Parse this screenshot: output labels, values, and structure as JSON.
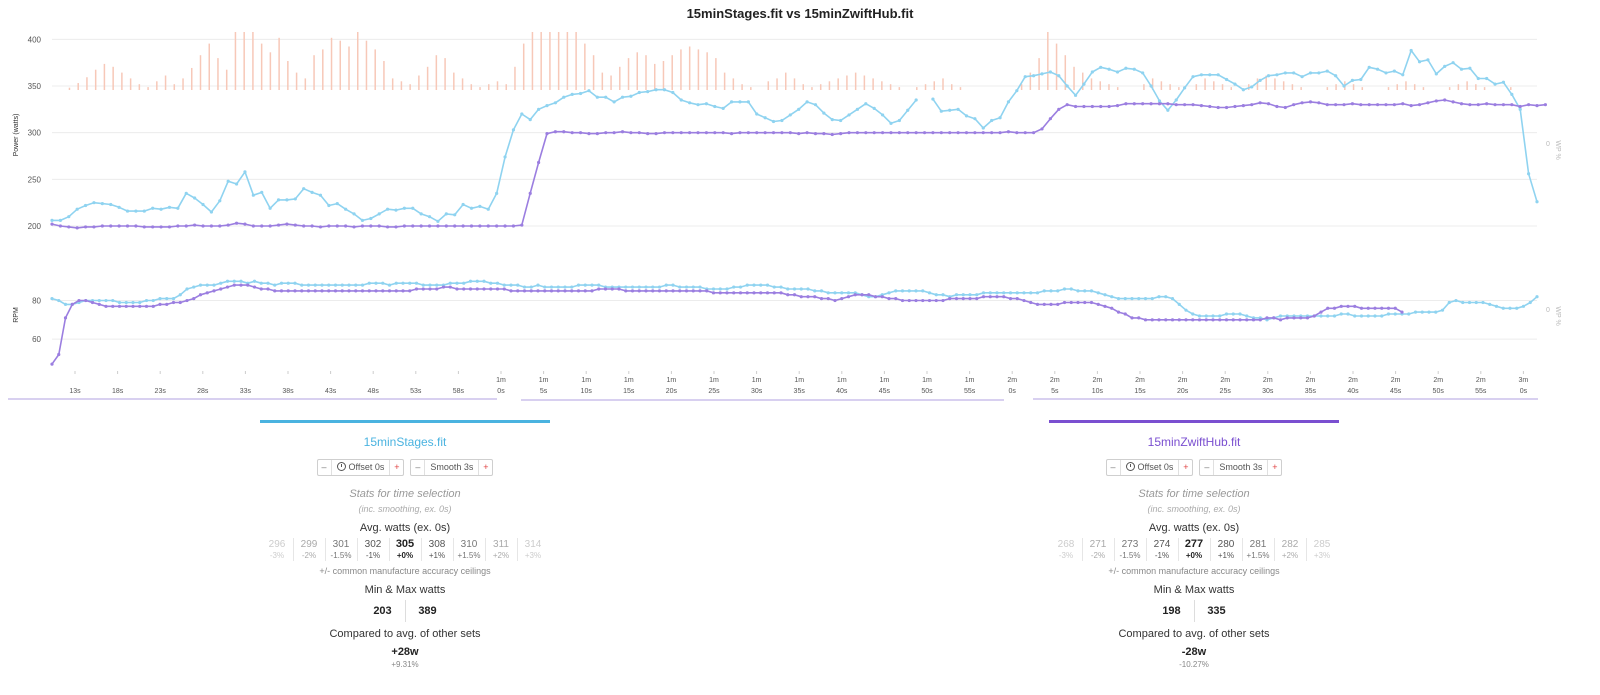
{
  "title": "15minStages.fit vs 15minZwiftHub.fit",
  "colors": {
    "stages": "#8fd3f0",
    "zwift": "#9b7ee0",
    "stages_bar": "#4ab3e0",
    "zwift_bar": "#7a4fd0",
    "wp_bars": "#f7c8b8",
    "grid": "#ececec"
  },
  "chart_data": [
    {
      "type": "line",
      "ylabel": "Power (watts)",
      "y2label": "WP %",
      "y2_tick": "0",
      "ylim": [
        185,
        410
      ],
      "yticks": [
        200,
        250,
        300,
        350,
        400
      ],
      "x_start_s": 9,
      "x_step_s": 1,
      "grid": true,
      "series": [
        {
          "name": "15minStages.fit",
          "values": [
            206,
            206,
            210,
            218,
            222,
            225,
            224,
            223,
            220,
            216,
            216,
            216,
            219,
            218,
            220,
            219,
            235,
            230,
            223,
            215,
            227,
            248,
            245,
            258,
            233,
            236,
            219,
            228,
            228,
            229,
            240,
            236,
            233,
            222,
            224,
            218,
            213,
            206,
            208,
            213,
            218,
            217,
            219,
            219,
            213,
            210,
            205,
            213,
            212,
            223,
            219,
            221,
            218,
            235,
            274,
            303,
            320,
            314,
            325,
            329,
            332,
            338,
            341,
            342,
            345,
            338,
            338,
            333,
            338,
            339,
            343,
            344,
            346,
            346,
            343,
            335,
            332,
            330,
            331,
            328,
            326,
            333,
            333,
            333,
            320,
            316,
            312,
            313,
            319,
            325,
            333,
            330,
            321,
            314,
            313,
            319,
            325,
            331,
            326,
            319,
            310,
            313,
            324,
            335,
            null,
            336,
            323,
            324,
            325,
            318,
            315,
            305,
            313,
            316,
            333,
            345,
            360,
            361,
            363,
            365,
            361,
            350,
            340,
            352,
            365,
            370,
            368,
            365,
            369,
            368,
            364,
            350,
            334,
            324,
            335,
            348,
            360,
            362,
            362,
            362,
            357,
            352,
            346,
            349,
            356,
            361,
            362,
            364,
            364,
            360,
            364,
            364,
            366,
            361,
            350,
            356,
            357,
            370,
            368,
            364,
            366,
            362,
            388,
            376,
            378,
            363,
            371,
            375,
            368,
            369,
            358,
            358,
            352,
            354,
            341,
            325,
            256,
            226
          ]
        },
        {
          "name": "15minZwiftHub.fit",
          "values": [
            202,
            200,
            199,
            198,
            199,
            199,
            200,
            200,
            200,
            200,
            200,
            199,
            199,
            199,
            199,
            200,
            200,
            201,
            200,
            200,
            200,
            201,
            203,
            202,
            200,
            200,
            200,
            201,
            202,
            201,
            200,
            200,
            199,
            200,
            200,
            200,
            199,
            200,
            200,
            200,
            199,
            199,
            200,
            200,
            200,
            200,
            200,
            200,
            200,
            200,
            200,
            200,
            200,
            200,
            200,
            200,
            201,
            235,
            268,
            299,
            301,
            301,
            300,
            300,
            299,
            299,
            300,
            300,
            301,
            300,
            300,
            299,
            299,
            300,
            300,
            300,
            300,
            300,
            300,
            300,
            300,
            299,
            300,
            300,
            300,
            300,
            300,
            300,
            300,
            299,
            300,
            299,
            299,
            298,
            299,
            300,
            300,
            300,
            300,
            300,
            300,
            300,
            300,
            300,
            300,
            300,
            300,
            300,
            300,
            300,
            300,
            300,
            300,
            300,
            301,
            300,
            300,
            300,
            304,
            315,
            325,
            330,
            328,
            328,
            328,
            328,
            328,
            329,
            331,
            331,
            331,
            331,
            331,
            331,
            330,
            330,
            330,
            329,
            328,
            327,
            327,
            328,
            329,
            330,
            332,
            331,
            328,
            327,
            330,
            332,
            333,
            332,
            330,
            330,
            330,
            331,
            330,
            330,
            330,
            330,
            330,
            331,
            329,
            330,
            332,
            334,
            335,
            333,
            331,
            330,
            330,
            331,
            330,
            330,
            330,
            328,
            330,
            329,
            330
          ]
        }
      ],
      "wp_bars": [
        0,
        0,
        4,
        12,
        22,
        35,
        45,
        40,
        30,
        20,
        10,
        5,
        15,
        25,
        10,
        20,
        38,
        60,
        80,
        55,
        35,
        100,
        100,
        100,
        80,
        65,
        90,
        50,
        30,
        20,
        60,
        70,
        90,
        85,
        75,
        100,
        85,
        70,
        50,
        20,
        15,
        10,
        25,
        40,
        60,
        55,
        30,
        20,
        10,
        5,
        10,
        15,
        10,
        40,
        80,
        100,
        100,
        100,
        100,
        100,
        100,
        80,
        60,
        30,
        25,
        40,
        55,
        65,
        60,
        45,
        50,
        60,
        70,
        75,
        70,
        65,
        55,
        30,
        20,
        10,
        5,
        0,
        15,
        20,
        30,
        20,
        10,
        5,
        10,
        15,
        20,
        25,
        30,
        25,
        20,
        15,
        10,
        5,
        0,
        5,
        10,
        15,
        20,
        10,
        5,
        0,
        0,
        0,
        0,
        0,
        0,
        10,
        30,
        55,
        100,
        80,
        60,
        40,
        30,
        20,
        15,
        10,
        5,
        0,
        0,
        10,
        20,
        15,
        10,
        5,
        0,
        10,
        20,
        15,
        10,
        5,
        0,
        10,
        20,
        25,
        20,
        15,
        10,
        5,
        0,
        0,
        5,
        10,
        15,
        10,
        5,
        0,
        0,
        5,
        10,
        15,
        10,
        5,
        0,
        0,
        5,
        10,
        15,
        10,
        5,
        0,
        0,
        5,
        0,
        0,
        0
      ]
    },
    {
      "type": "line",
      "ylabel": "RPM",
      "y2label": "WP %",
      "y2_tick": "0",
      "ylim": [
        45,
        100
      ],
      "yticks": [
        60,
        80
      ],
      "x_start_s": 9,
      "x_step_s": 1,
      "grid": true,
      "series": [
        {
          "name": "15minStages.fit",
          "values": [
            81,
            80,
            78,
            78,
            79,
            80,
            80,
            80,
            80,
            80,
            79,
            79,
            79,
            79,
            80,
            80,
            81,
            81,
            81,
            83,
            86,
            87,
            88,
            88,
            88,
            89,
            90,
            90,
            90,
            89,
            90,
            89,
            89,
            88,
            89,
            89,
            89,
            88,
            88,
            88,
            88,
            88,
            88,
            88,
            88,
            88,
            88,
            89,
            89,
            89,
            88,
            89,
            89,
            89,
            89,
            88,
            88,
            88,
            88,
            89,
            89,
            89,
            90,
            90,
            90,
            89,
            89,
            88,
            88,
            88,
            87,
            87,
            88,
            87,
            87,
            87,
            87,
            87,
            88,
            88,
            88,
            88,
            87,
            87,
            87,
            87,
            87,
            87,
            87,
            87,
            87,
            88,
            88,
            87,
            87,
            87,
            87,
            86,
            86,
            86,
            86,
            87,
            87,
            88,
            88,
            88,
            88,
            87,
            87,
            86,
            86,
            86,
            86,
            85,
            85,
            84,
            84,
            84,
            84,
            84,
            83,
            82,
            82,
            83,
            84,
            85,
            85,
            85,
            85,
            85,
            84,
            83,
            83,
            82,
            83,
            83,
            83,
            83,
            84,
            84,
            84,
            84,
            84,
            84,
            84,
            84,
            84,
            85,
            85,
            85,
            86,
            86,
            85,
            85,
            85,
            84,
            83,
            82,
            81,
            81,
            81,
            81,
            81,
            81,
            82,
            82,
            81,
            78,
            75,
            73,
            72,
            72,
            72,
            72,
            73,
            73,
            73,
            72,
            71,
            71,
            70,
            71,
            72,
            72,
            72,
            72,
            72,
            72,
            72,
            72,
            72,
            73,
            73,
            72,
            72,
            72,
            72,
            72,
            73,
            73,
            73,
            73,
            74,
            74,
            74,
            74,
            75,
            79,
            80,
            79,
            79,
            79,
            79,
            78,
            77,
            76,
            76,
            76,
            77,
            79,
            82
          ]
        },
        {
          "name": "15minZwiftHub.fit",
          "values": [
            47,
            52,
            71,
            78,
            80,
            80,
            79,
            78,
            77,
            77,
            77,
            77,
            77,
            77,
            77,
            77,
            78,
            78,
            79,
            79,
            80,
            81,
            83,
            84,
            85,
            86,
            87,
            88,
            88,
            88,
            87,
            86,
            86,
            85,
            85,
            85,
            85,
            85,
            85,
            85,
            85,
            85,
            85,
            85,
            85,
            85,
            85,
            85,
            85,
            85,
            85,
            85,
            85,
            85,
            86,
            86,
            86,
            86,
            87,
            87,
            86,
            86,
            86,
            86,
            86,
            86,
            86,
            86,
            85,
            85,
            85,
            85,
            85,
            85,
            85,
            85,
            85,
            85,
            85,
            85,
            85,
            86,
            86,
            86,
            86,
            85,
            85,
            85,
            85,
            85,
            85,
            85,
            85,
            85,
            85,
            85,
            85,
            85,
            84,
            84,
            84,
            84,
            84,
            84,
            84,
            84,
            84,
            84,
            84,
            83,
            83,
            82,
            82,
            82,
            81,
            81,
            80,
            81,
            82,
            83,
            83,
            83,
            82,
            82,
            81,
            81,
            80,
            80,
            80,
            80,
            80,
            80,
            80,
            81,
            81,
            81,
            81,
            81,
            82,
            82,
            82,
            82,
            81,
            81,
            80,
            79,
            78,
            78,
            78,
            78,
            79,
            79,
            79,
            79,
            79,
            78,
            77,
            76,
            74,
            73,
            71,
            71,
            70,
            70,
            70,
            70,
            70,
            70,
            70,
            70,
            70,
            70,
            70,
            70,
            70,
            70,
            70,
            70,
            70,
            70,
            71,
            71,
            70,
            71,
            71,
            71,
            71,
            72,
            74,
            76,
            76,
            77,
            77,
            77,
            76,
            76,
            76,
            76,
            76,
            76,
            74
          ]
        }
      ]
    }
  ],
  "x_axis": {
    "ticks": [
      [
        "13s"
      ],
      [
        "18s"
      ],
      [
        "23s"
      ],
      [
        "28s"
      ],
      [
        "33s"
      ],
      [
        "38s"
      ],
      [
        "43s"
      ],
      [
        "48s"
      ],
      [
        "53s"
      ],
      [
        "58s"
      ],
      [
        "1m",
        "0s"
      ],
      [
        "1m",
        "5s"
      ],
      [
        "1m",
        "10s"
      ],
      [
        "1m",
        "15s"
      ],
      [
        "1m",
        "20s"
      ],
      [
        "1m",
        "25s"
      ],
      [
        "1m",
        "30s"
      ],
      [
        "1m",
        "35s"
      ],
      [
        "1m",
        "40s"
      ],
      [
        "1m",
        "45s"
      ],
      [
        "1m",
        "50s"
      ],
      [
        "1m",
        "55s"
      ],
      [
        "2m",
        "0s"
      ],
      [
        "2m",
        "5s"
      ],
      [
        "2m",
        "10s"
      ],
      [
        "2m",
        "15s"
      ],
      [
        "2m",
        "20s"
      ],
      [
        "2m",
        "25s"
      ],
      [
        "2m",
        "30s"
      ],
      [
        "2m",
        "35s"
      ],
      [
        "2m",
        "40s"
      ],
      [
        "2m",
        "45s"
      ],
      [
        "2m",
        "50s"
      ],
      [
        "2m",
        "55s"
      ],
      [
        "3m",
        "0s"
      ]
    ]
  },
  "panels": [
    {
      "name": "15minStages.fit",
      "offset_label": "Offset 0s",
      "smooth_label": "Smooth 3s",
      "stats_title": "Stats for time selection",
      "stats_sub": "(inc. smoothing, ex. 0s)",
      "avg_title": "Avg. watts (ex. 0s)",
      "accuracy": [
        {
          "v": "296",
          "p": "-3%"
        },
        {
          "v": "299",
          "p": "-2%"
        },
        {
          "v": "301",
          "p": "-1.5%"
        },
        {
          "v": "302",
          "p": "-1%"
        },
        {
          "v": "305",
          "p": "+0%"
        },
        {
          "v": "308",
          "p": "+1%"
        },
        {
          "v": "310",
          "p": "+1.5%"
        },
        {
          "v": "311",
          "p": "+2%"
        },
        {
          "v": "314",
          "p": "+3%"
        }
      ],
      "accuracy_note": "+/- common manufacture accuracy ceilings",
      "minmax_title": "Min & Max watts",
      "min": "203",
      "max": "389",
      "compare_title": "Compared to avg. of other sets",
      "compare_value": "+28w",
      "compare_pct": "+9.31%"
    },
    {
      "name": "15minZwiftHub.fit",
      "offset_label": "Offset 0s",
      "smooth_label": "Smooth 3s",
      "stats_title": "Stats for time selection",
      "stats_sub": "(inc. smoothing, ex. 0s)",
      "avg_title": "Avg. watts (ex. 0s)",
      "accuracy": [
        {
          "v": "268",
          "p": "-3%"
        },
        {
          "v": "271",
          "p": "-2%"
        },
        {
          "v": "273",
          "p": "-1.5%"
        },
        {
          "v": "274",
          "p": "-1%"
        },
        {
          "v": "277",
          "p": "+0%"
        },
        {
          "v": "280",
          "p": "+1%"
        },
        {
          "v": "281",
          "p": "+1.5%"
        },
        {
          "v": "282",
          "p": "+2%"
        },
        {
          "v": "285",
          "p": "+3%"
        }
      ],
      "accuracy_note": "+/- common manufacture accuracy ceilings",
      "minmax_title": "Min & Max watts",
      "min": "198",
      "max": "335",
      "compare_title": "Compared to avg. of other sets",
      "compare_value": "-28w",
      "compare_pct": "-10.27%"
    }
  ]
}
